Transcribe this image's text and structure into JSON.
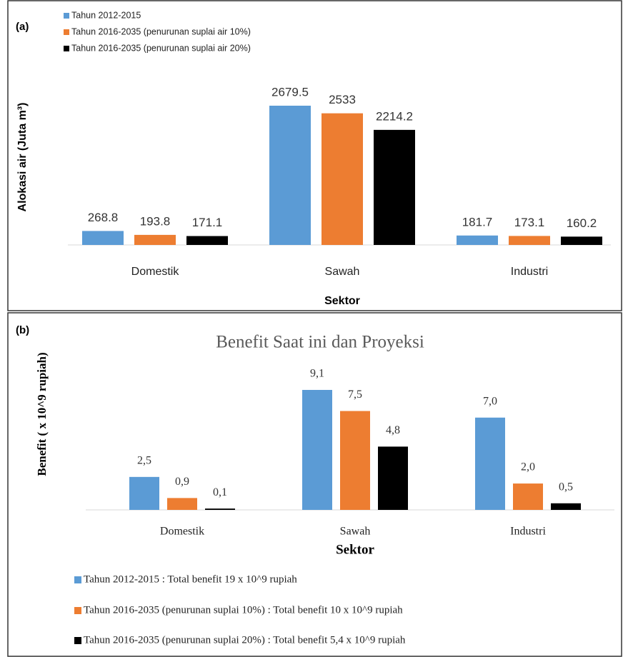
{
  "chart_data": [
    {
      "type": "bar",
      "label": "(a)",
      "y_label": "Alokasi air (Juta m³)",
      "x_label": "Sektor",
      "categories": [
        "Domestik",
        "Sawah",
        "Industri"
      ],
      "series": [
        {
          "name": "Tahun 2012-2015",
          "color": "#5b9bd5",
          "values": [
            268.8,
            2679.5,
            181.7
          ]
        },
        {
          "name": "Tahun 2016-2035 (penurunan suplai air 10%)",
          "color": "#ed7d31",
          "values": [
            193.8,
            2533,
            173.1
          ]
        },
        {
          "name": "Tahun 2016-2035 (penurunan suplai air 20%)",
          "color": "#000000",
          "values": [
            171.1,
            2214.2,
            160.2
          ]
        }
      ]
    },
    {
      "type": "bar",
      "label": "(b)",
      "title": "Benefit Saat ini dan Proyeksi",
      "y_label": "Benefit ( x 10^9 rupiah)",
      "x_label": "Sektor",
      "categories": [
        "Domestik",
        "Sawah",
        "Industri"
      ],
      "series": [
        {
          "name": "Tahun 2012-2015 : Total benefit 19 x 10^9 rupiah",
          "color": "#5b9bd5",
          "values": [
            2.5,
            9.1,
            7.0
          ],
          "value_labels": [
            "2,5",
            "9,1",
            "7,0"
          ]
        },
        {
          "name": "Tahun 2016-2035 (penurunan suplai 10%) : Total benefit 10 x 10^9 rupiah",
          "color": "#ed7d31",
          "values": [
            0.9,
            7.5,
            2.0
          ],
          "value_labels": [
            "0,9",
            "7,5",
            "2,0"
          ]
        },
        {
          "name": "Tahun 2016-2035 (penurunan suplai 20%) : Total benefit 5,4 x 10^9 rupiah",
          "color": "#000000",
          "values": [
            0.1,
            4.8,
            0.5
          ],
          "value_labels": [
            "0,1",
            "4,8",
            "0,5"
          ]
        }
      ]
    }
  ]
}
